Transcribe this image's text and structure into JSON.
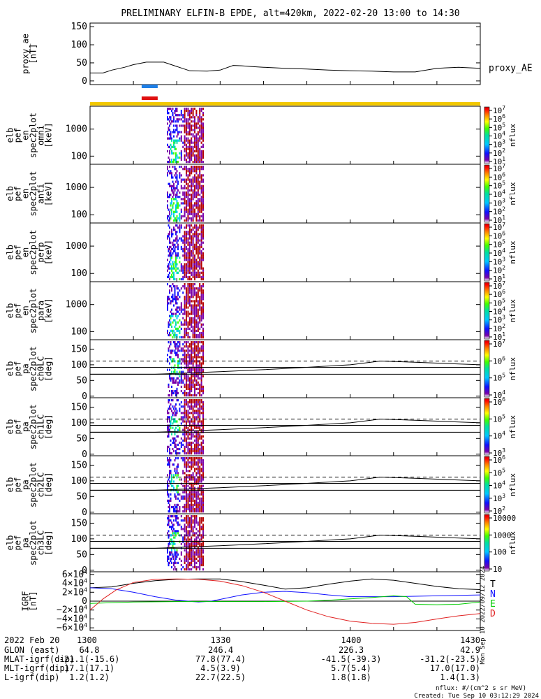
{
  "title": "PRELIMINARY ELFIN-B EPDE, alt=420km, 2022-02-20 13:00 to 14:30",
  "chart_data": {
    "type": "line",
    "time_range_min": [
      0,
      90
    ],
    "panels": [
      {
        "kind": "line",
        "ylabel": [
          "proxy_ae",
          "[nT]"
        ],
        "yticks": [
          "150",
          "100",
          "50",
          "0"
        ],
        "ytick_values": [
          150,
          100,
          50,
          0
        ],
        "ylim": [
          -10,
          160
        ],
        "legend": "proxy_AE",
        "x": [
          0,
          3,
          5,
          8,
          10,
          13,
          17,
          20,
          23,
          27,
          30,
          33,
          35,
          37,
          40,
          45,
          50,
          55,
          60,
          65,
          70,
          75,
          80,
          85,
          90
        ],
        "values": [
          22,
          22,
          30,
          38,
          45,
          52,
          52,
          40,
          28,
          27,
          30,
          43,
          42,
          40,
          38,
          35,
          33,
          30,
          28,
          27,
          25,
          25,
          35,
          38,
          35
        ]
      },
      {
        "kind": "spectrogram",
        "ylabel": [
          "elb",
          "pef",
          "en",
          "spec2plot",
          "omni",
          "[keV]"
        ],
        "yticks": [
          "1000",
          "100"
        ],
        "ytick_values": [
          1000,
          100
        ],
        "yscale": "log",
        "ylim": [
          50,
          7000
        ],
        "cbar_ticks": [
          "10<tspan dy='-5' font-size='8'>7</tspan>",
          "10<tspan dy='-5' font-size='8'>6</tspan>",
          "10<tspan dy='-5' font-size='8'>5</tspan>",
          "10<tspan dy='-5' font-size='8'>4</tspan>",
          "10<tspan dy='-5' font-size='8'>3</tspan>",
          "10<tspan dy='-5' font-size='8'>2</tspan>",
          "10<tspan dy='-5' font-size='8'>1</tspan>"
        ],
        "cbar_label": "nflux"
      },
      {
        "kind": "spectrogram",
        "ylabel": [
          "elb",
          "pef",
          "en",
          "spec2plot",
          "anti",
          "[keV]"
        ],
        "yticks": [
          "1000",
          "100"
        ],
        "ytick_values": [
          1000,
          100
        ],
        "yscale": "log",
        "ylim": [
          50,
          7000
        ],
        "cbar_ticks": [
          "10<tspan dy='-5' font-size='8'>7</tspan>",
          "10<tspan dy='-5' font-size='8'>6</tspan>",
          "10<tspan dy='-5' font-size='8'>5</tspan>",
          "10<tspan dy='-5' font-size='8'>4</tspan>",
          "10<tspan dy='-5' font-size='8'>3</tspan>",
          "10<tspan dy='-5' font-size='8'>2</tspan>",
          "10<tspan dy='-5' font-size='8'>1</tspan>"
        ],
        "cbar_label": "nflux"
      },
      {
        "kind": "spectrogram",
        "ylabel": [
          "elb",
          "pef",
          "en",
          "spec2plot",
          "perp",
          "[keV]"
        ],
        "yticks": [
          "1000",
          "100"
        ],
        "ytick_values": [
          1000,
          100
        ],
        "yscale": "log",
        "ylim": [
          50,
          7000
        ],
        "cbar_ticks": [
          "10<tspan dy='-5' font-size='8'>7</tspan>",
          "10<tspan dy='-5' font-size='8'>6</tspan>",
          "10<tspan dy='-5' font-size='8'>5</tspan>",
          "10<tspan dy='-5' font-size='8'>4</tspan>",
          "10<tspan dy='-5' font-size='8'>3</tspan>",
          "10<tspan dy='-5' font-size='8'>2</tspan>",
          "10<tspan dy='-5' font-size='8'>1</tspan>"
        ],
        "cbar_label": "nflux"
      },
      {
        "kind": "spectrogram",
        "ylabel": [
          "elb",
          "pef",
          "en",
          "spec2plot",
          "para",
          "[keV]"
        ],
        "yticks": [
          "1000",
          "100"
        ],
        "ytick_values": [
          1000,
          100
        ],
        "yscale": "log",
        "ylim": [
          50,
          7000
        ],
        "cbar_ticks": [
          "10<tspan dy='-5' font-size='8'>7</tspan>",
          "10<tspan dy='-5' font-size='8'>6</tspan>",
          "10<tspan dy='-5' font-size='8'>5</tspan>",
          "10<tspan dy='-5' font-size='8'>4</tspan>",
          "10<tspan dy='-5' font-size='8'>3</tspan>",
          "10<tspan dy='-5' font-size='8'>2</tspan>",
          "10<tspan dy='-5' font-size='8'>1</tspan>"
        ],
        "cbar_label": "nflux"
      },
      {
        "kind": "pitch",
        "ylabel": [
          "elb",
          "pef",
          "pa",
          "spec2plot",
          "ch0LC",
          "[deg]"
        ],
        "yticks": [
          "150",
          "100",
          "50",
          "0"
        ],
        "ytick_values": [
          150,
          100,
          50,
          0
        ],
        "ylim": [
          -5,
          180
        ],
        "cbar_ticks": [
          "10<tspan dy='-5' font-size='8'>7</tspan>",
          "10<tspan dy='-5' font-size='8'>6</tspan>",
          "10<tspan dy='-5' font-size='8'>5</tspan>",
          "10<tspan dy='-5' font-size='8'>4</tspan>"
        ],
        "cbar_label": "nflux"
      },
      {
        "kind": "pitch",
        "ylabel": [
          "elb",
          "pef",
          "pa",
          "spec2plot",
          "ch1LC",
          "[deg]"
        ],
        "yticks": [
          "150",
          "100",
          "50",
          "0"
        ],
        "ytick_values": [
          150,
          100,
          50,
          0
        ],
        "ylim": [
          -5,
          180
        ],
        "cbar_ticks": [
          "10<tspan dy='-5' font-size='8'>6</tspan>",
          "10<tspan dy='-5' font-size='8'>5</tspan>",
          "10<tspan dy='-5' font-size='8'>4</tspan>",
          "10<tspan dy='-5' font-size='8'>3</tspan>"
        ],
        "cbar_label": "nflux"
      },
      {
        "kind": "pitch",
        "ylabel": [
          "elb",
          "pef",
          "pa",
          "spec2plot",
          "ch2LC",
          "[deg]"
        ],
        "yticks": [
          "150",
          "100",
          "50",
          "0"
        ],
        "ytick_values": [
          150,
          100,
          50,
          0
        ],
        "ylim": [
          -5,
          180
        ],
        "cbar_ticks": [
          "10<tspan dy='-5' font-size='8'>6</tspan>",
          "10<tspan dy='-5' font-size='8'>5</tspan>",
          "10<tspan dy='-5' font-size='8'>4</tspan>",
          "10<tspan dy='-5' font-size='8'>3</tspan>",
          "10<tspan dy='-5' font-size='8'>2</tspan>"
        ],
        "cbar_label": "nflux"
      },
      {
        "kind": "pitch",
        "ylabel": [
          "elb",
          "pef",
          "pa",
          "spec2plot",
          "ch3LC",
          "[deg]"
        ],
        "yticks": [
          "150",
          "100",
          "50",
          "0"
        ],
        "ytick_values": [
          150,
          100,
          50,
          0
        ],
        "ylim": [
          -5,
          180
        ],
        "cbar_ticks": [
          "10000",
          "1000",
          "100",
          "10"
        ],
        "cbar_label": "nflux"
      },
      {
        "kind": "igrf",
        "ylabel": [
          "IGRF",
          "[nT]"
        ],
        "yticks": [
          "6×10<tspan dy='-5' font-size='8'>4</tspan>",
          "4×10<tspan dy='-5' font-size='8'>4</tspan>",
          "2×10<tspan dy='-5' font-size='8'>4</tspan>",
          "0",
          "−2×10<tspan dy='-5' font-size='8'>4</tspan>",
          "−4×10<tspan dy='-5' font-size='8'>4</tspan>",
          "−6×10<tspan dy='-5' font-size='8'>4</tspan>"
        ],
        "ytick_values": [
          60000,
          40000,
          20000,
          0,
          -20000,
          -40000,
          -60000
        ],
        "ylim": [
          -66000,
          66000
        ],
        "series": [
          {
            "name": "T",
            "color": "#000000",
            "x": [
              0,
              5,
              10,
              15,
              20,
              25,
              30,
              35,
              40,
              45,
              50,
              55,
              60,
              65,
              70,
              75,
              80,
              85,
              90
            ],
            "values": [
              30000,
              32000,
              40000,
              46000,
              49000,
              50000,
              50000,
              44000,
              36000,
              27000,
              30000,
              38000,
              45000,
              50000,
              47000,
              40000,
              33000,
              28000,
              26000
            ]
          },
          {
            "name": "N",
            "color": "#1010ff",
            "x": [
              0,
              5,
              10,
              15,
              20,
              25,
              28,
              30,
              35,
              40,
              45,
              50,
              55,
              60,
              65,
              70,
              75,
              80,
              85,
              90
            ],
            "values": [
              30000,
              28000,
              20000,
              10000,
              2000,
              -2000,
              0,
              4000,
              14000,
              20000,
              22000,
              19000,
              14000,
              10000,
              10000,
              10000,
              11000,
              12000,
              13000,
              14000
            ]
          },
          {
            "name": "E",
            "color": "#00cc00",
            "x": [
              0,
              10,
              20,
              30,
              40,
              50,
              55,
              60,
              65,
              70,
              73,
              75,
              80,
              85,
              90
            ],
            "values": [
              -5000,
              -2000,
              -1000,
              -1000,
              -1000,
              0,
              2000,
              5000,
              8000,
              12000,
              10000,
              -7000,
              -8000,
              -7000,
              -2000
            ]
          },
          {
            "name": "D",
            "color": "#e02020",
            "x": [
              0,
              3,
              6,
              10,
              15,
              20,
              25,
              30,
              35,
              40,
              45,
              50,
              55,
              60,
              65,
              70,
              75,
              80,
              85,
              90
            ],
            "values": [
              -20000,
              5000,
              25000,
              42000,
              49000,
              50000,
              49000,
              45000,
              35000,
              20000,
              0,
              -20000,
              -35000,
              -45000,
              -50000,
              -52000,
              -48000,
              -40000,
              -33000,
              -28000
            ]
          }
        ]
      }
    ],
    "bars": [
      {
        "color": "#1f7fe6",
        "t0": 11.9,
        "t1": 15.6
      },
      {
        "color": "#e01010",
        "t0": 11.9,
        "t1": 15.6
      },
      {
        "color": "#f2c800",
        "t0": 0,
        "t1": 90
      }
    ],
    "pa_reference_lines": [
      {
        "style": "dashed",
        "value": 112
      },
      {
        "style": "solid",
        "value": 92
      },
      {
        "style": "solid",
        "value": 70
      }
    ],
    "pa_trend": {
      "x": [
        0,
        15,
        30,
        45,
        60,
        67,
        75,
        90
      ],
      "values": [
        70,
        70,
        78,
        88,
        100,
        112,
        108,
        100
      ]
    }
  },
  "footer": {
    "rows": [
      [
        "2022 Feb 20",
        "1300",
        "1330",
        "1400",
        "1430"
      ],
      [
        "GLON (east)",
        "64.8",
        "246.4",
        "226.3",
        "42.9"
      ],
      [
        "MLAT-igrf(dip)",
        "-21.1(-15.6)",
        "77.8(77.4)",
        "-41.5(-39.3)",
        "-31.2(-23.5)"
      ],
      [
        "MLT-igrf(dip)",
        "17.1(17.1)",
        "4.5(3.9)",
        "5.7(5.4)",
        "17.0(17.0)"
      ],
      [
        "L-igrf(dip)",
        "1.2(1.2)",
        "22.7(22.5)",
        "1.8(1.8)",
        "1.4(1.3)"
      ]
    ],
    "units_note": "nflux: #/(cm^2 s sr MeV)",
    "created": "Created: Tue Sep 10 03:12:29 2024",
    "side_stamp": "Mon Sep 10 2022/09/12 2024"
  }
}
